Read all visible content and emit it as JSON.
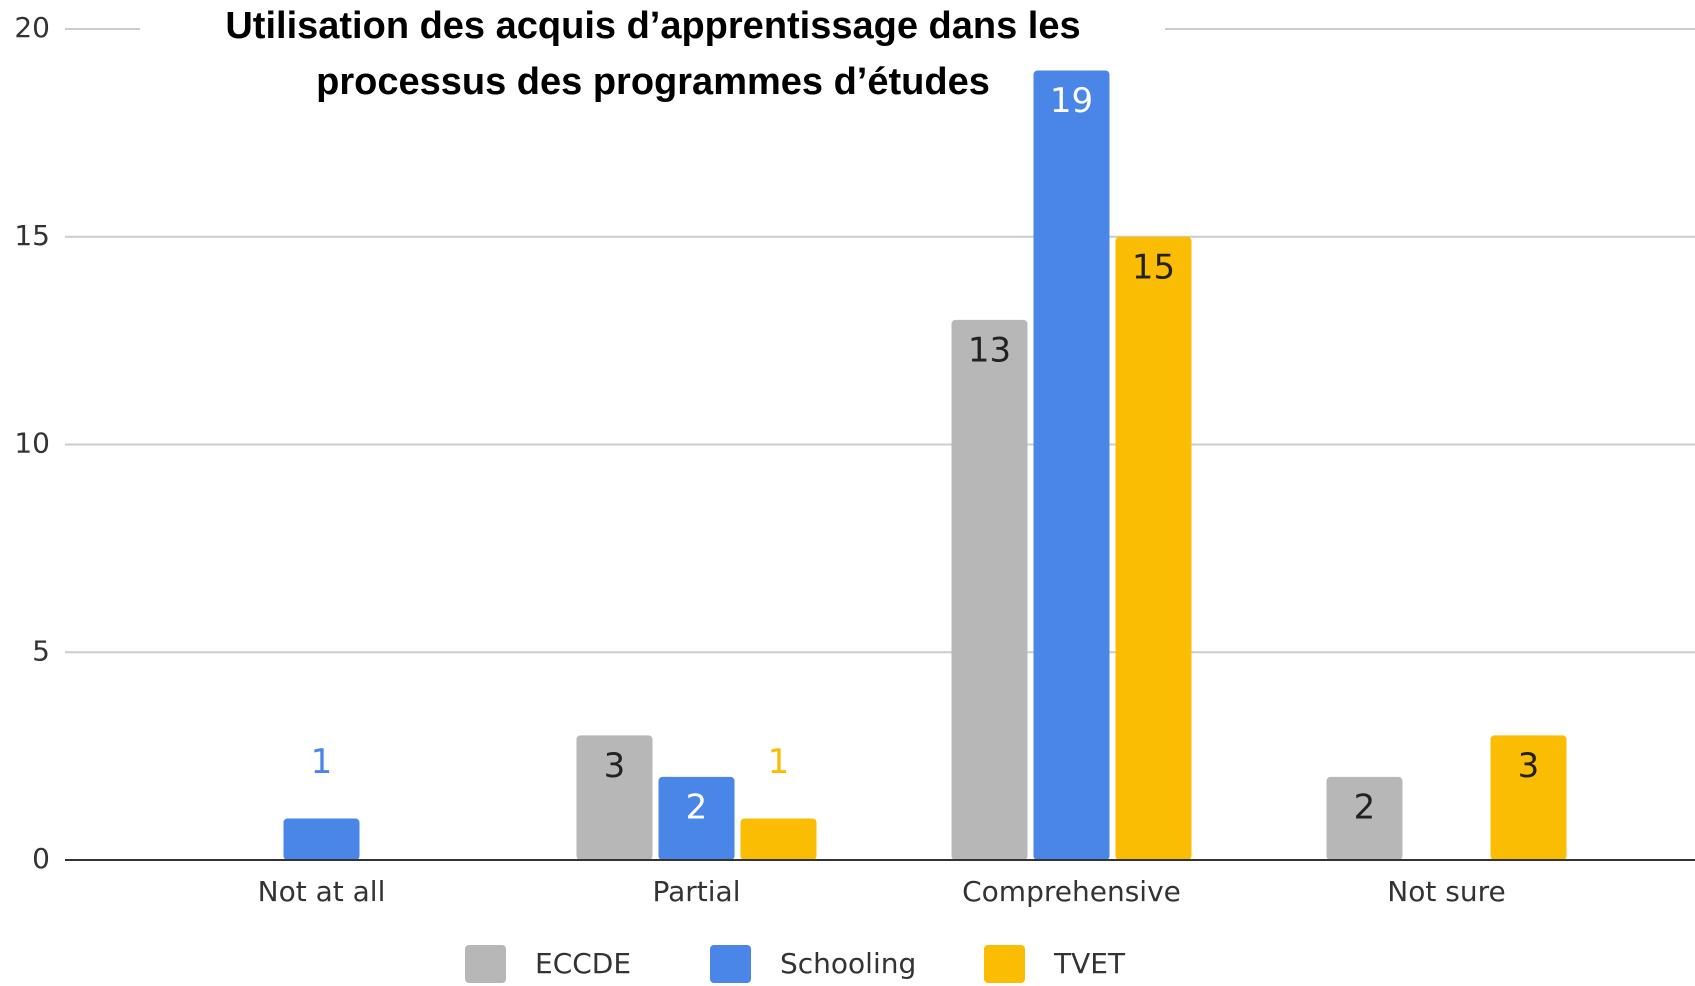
{
  "chart_data": {
    "type": "bar",
    "title": [
      "Utilisation des acquis d’apprentissage dans les",
      "processus des programmes d’études"
    ],
    "categories": [
      "Not at all",
      "Partial",
      "Comprehensive",
      "Not sure"
    ],
    "series": [
      {
        "name": "ECCDE",
        "color": "#b7b7b7",
        "values": [
          0,
          3,
          13,
          2
        ]
      },
      {
        "name": "Schooling",
        "color": "#4a86e8",
        "values": [
          1,
          2,
          19,
          0
        ]
      },
      {
        "name": "TVET",
        "color": "#fbbc04",
        "values": [
          0,
          1,
          15,
          3
        ]
      }
    ],
    "ylim": [
      0,
      20
    ],
    "yticks": [
      0,
      5,
      10,
      15,
      20
    ],
    "grid": true,
    "legend": "bottom"
  }
}
